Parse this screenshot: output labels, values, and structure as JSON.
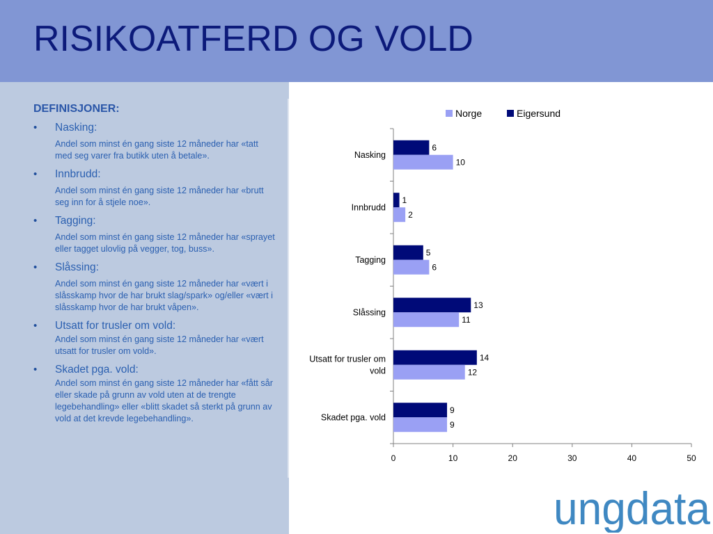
{
  "header": {
    "title": "RISIKOATFERD OG VOLD"
  },
  "definitions": {
    "heading": "DEFINISJONER:",
    "items": [
      {
        "term": "Nasking:",
        "desc": "Andel som minst én gang siste 12 måneder har «tatt med seg varer fra butikk uten å betale»."
      },
      {
        "term": "Innbrudd:",
        "desc": "Andel som minst én gang siste 12 måneder har «brutt seg inn for å stjele noe»."
      },
      {
        "term": "Tagging:",
        "desc": "Andel som minst én gang siste 12 måneder har «sprayet eller tagget ulovlig på vegger, tog, buss»."
      },
      {
        "term": "Slåssing:",
        "desc": "Andel som minst én gang siste 12 måneder har «vært i slåsskamp hvor de har brukt slag/spark» og/eller «vært i slåsskamp hvor de har brukt våpen»."
      },
      {
        "term": "Utsatt for trusler om vold:",
        "desc": "Andel som minst én gang siste 12 måneder har «vært utsatt for trusler om vold»."
      },
      {
        "term": "Skadet pga. vold:",
        "desc": "Andel som minst én gang siste 12 måneder har «fått sår eller skade på grunn av vold uten at de trengte legebehandling» eller «blitt skadet så sterkt på grunn av vold at det krevde legebehandling»."
      }
    ]
  },
  "chart_data": {
    "type": "bar",
    "orientation": "horizontal",
    "categories": [
      "Nasking",
      "Innbrudd",
      "Tagging",
      "Slåssing",
      "Utsatt for trusler om vold",
      "Skadet pga. vold"
    ],
    "series": [
      {
        "name": "Eigersund",
        "color": "#000a78",
        "values": [
          6,
          1,
          5,
          13,
          14,
          9
        ]
      },
      {
        "name": "Norge",
        "color": "#9aa0f4",
        "values": [
          10,
          2,
          6,
          11,
          12,
          9
        ]
      }
    ],
    "legend_order": [
      "Norge",
      "Eigersund"
    ],
    "legend_position": "top",
    "xlim": [
      0,
      50
    ],
    "xticks": [
      0,
      10,
      20,
      30,
      40,
      50
    ],
    "data_labels": true,
    "grid": false
  },
  "logo": {
    "text": "ungdata",
    "color": "#3f88c2"
  }
}
